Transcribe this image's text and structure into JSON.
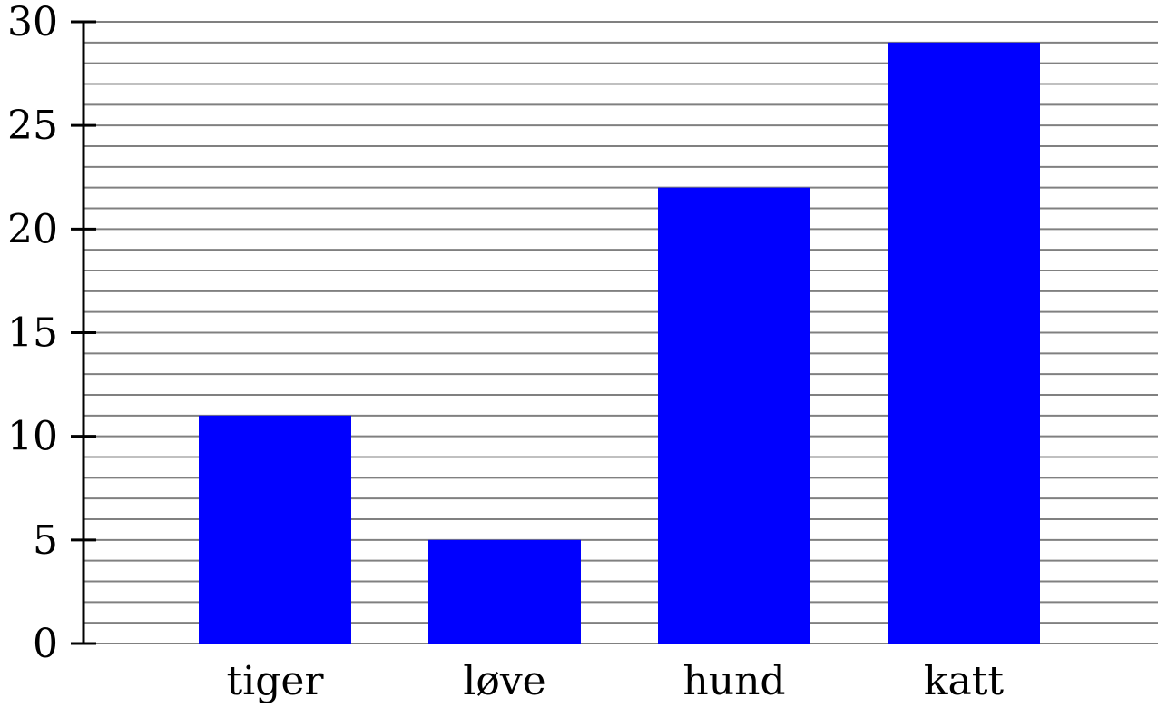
{
  "chart_data": {
    "type": "bar",
    "categories": [
      "tiger",
      "løve",
      "hund",
      "katt"
    ],
    "values": [
      11,
      5,
      22,
      29
    ],
    "ylim": [
      0,
      30
    ],
    "yticks": [
      0,
      5,
      10,
      15,
      20,
      25,
      30
    ],
    "minor_grid_step": 1,
    "grid": true,
    "title": "",
    "xlabel": "",
    "ylabel": "",
    "colors": {
      "bar": "#0000ff",
      "grid": "#808080",
      "axis": "#000000"
    }
  }
}
